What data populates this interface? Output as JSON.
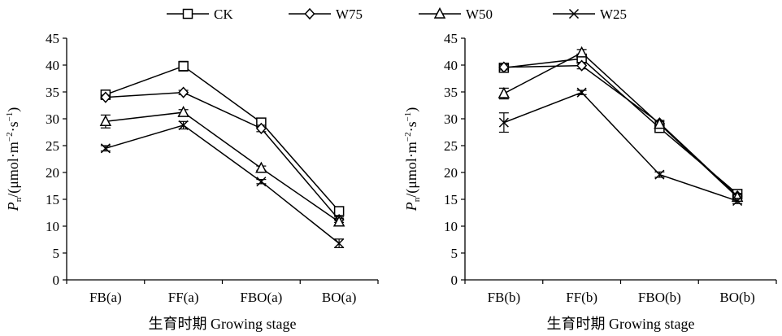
{
  "legend": [
    {
      "name": "CK",
      "marker": "square"
    },
    {
      "name": "W75",
      "marker": "diamond"
    },
    {
      "name": "W50",
      "marker": "triangle"
    },
    {
      "name": "W25",
      "marker": "x"
    }
  ],
  "chart_data": [
    {
      "type": "line",
      "categories": [
        "FB(a)",
        "FF(a)",
        "FBO(a)",
        "BO(a)"
      ],
      "xlabel": "生育时期  Growing stage",
      "ylabel": "Pn/(μmol·m−2·s−1)",
      "ylim": [
        0,
        45
      ],
      "yticks": [
        0,
        5,
        10,
        15,
        20,
        25,
        30,
        35,
        40,
        45
      ],
      "grid": false,
      "legend_position": "top",
      "series": [
        {
          "name": "CK",
          "values": [
            34.5,
            39.8,
            29.3,
            12.8
          ],
          "errors": [
            0.8,
            0.9,
            0.8,
            0.8
          ]
        },
        {
          "name": "W75",
          "values": [
            34.0,
            34.9,
            28.2,
            11.2
          ],
          "errors": [
            0.4,
            0.4,
            0.6,
            0.5
          ]
        },
        {
          "name": "W50",
          "values": [
            29.5,
            31.2,
            20.8,
            10.8
          ],
          "errors": [
            1.2,
            0.5,
            0.4,
            0.6
          ]
        },
        {
          "name": "W25",
          "values": [
            24.5,
            28.8,
            18.3,
            6.8
          ],
          "errors": [
            0.5,
            0.7,
            0.4,
            0.8
          ]
        }
      ]
    },
    {
      "type": "line",
      "categories": [
        "FB(b)",
        "FF(b)",
        "FBO(b)",
        "BO(b)"
      ],
      "xlabel": "生育时期  Growing stage",
      "ylabel": "Pn/(μmol·m−2·s−1)",
      "ylim": [
        0,
        45
      ],
      "yticks": [
        0,
        5,
        10,
        15,
        20,
        25,
        30,
        35,
        40,
        45
      ],
      "grid": false,
      "series": [
        {
          "name": "CK",
          "values": [
            39.5,
            41.2,
            28.3,
            16.0
          ],
          "errors": [
            0.5,
            0.8,
            0.8,
            0.8
          ]
        },
        {
          "name": "W75",
          "values": [
            39.6,
            39.9,
            29.2,
            15.6
          ],
          "errors": [
            0.5,
            0.6,
            0.5,
            0.5
          ]
        },
        {
          "name": "W50",
          "values": [
            34.7,
            42.3,
            29.0,
            15.4
          ],
          "errors": [
            1.0,
            0.6,
            0.5,
            0.5
          ]
        },
        {
          "name": "W25",
          "values": [
            29.3,
            34.9,
            19.6,
            14.7
          ],
          "errors": [
            1.8,
            0.4,
            0.5,
            0.5
          ]
        }
      ]
    }
  ]
}
